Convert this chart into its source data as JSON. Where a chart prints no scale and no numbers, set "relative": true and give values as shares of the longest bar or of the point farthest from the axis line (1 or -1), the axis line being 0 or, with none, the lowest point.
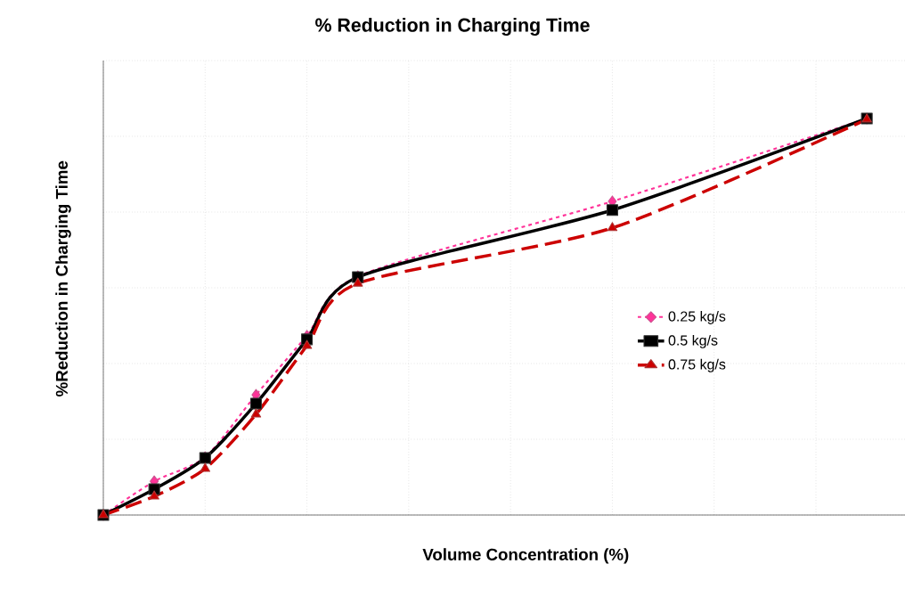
{
  "chart_data": {
    "type": "line",
    "title": "% Reduction in Charging Time",
    "xlabel": "Volume Concentration (%)",
    "ylabel": "%Reduction in Charging Time",
    "relative": true,
    "tick_labels": false,
    "grid": true,
    "legend": "right",
    "categories": [
      null,
      null,
      null,
      null,
      null,
      null,
      null,
      null,
      null,
      null,
      null,
      null,
      null,
      null,
      null,
      null
    ],
    "series": [
      {
        "name": "0.25 kg/s",
        "color": "#ff3399",
        "line_style": "dashed",
        "marker": "diamond",
        "values": [
          0,
          0.085,
          0.146,
          0.303,
          0.452,
          0.602,
          null,
          null,
          null,
          null,
          0.791,
          null,
          null,
          null,
          null,
          1.0
        ]
      },
      {
        "name": "0.5 kg/s",
        "color": "#000000",
        "line_style": "solid",
        "marker": "square",
        "values": [
          0,
          0.065,
          0.144,
          0.281,
          0.443,
          0.6,
          null,
          null,
          null,
          null,
          0.769,
          null,
          null,
          null,
          null,
          1.0
        ]
      },
      {
        "name": "0.75 kg/s",
        "color": "#cc0000",
        "line_style": "dashed",
        "marker": "triangle",
        "values": [
          0,
          0.047,
          0.117,
          0.254,
          0.427,
          0.584,
          null,
          null,
          null,
          null,
          0.724,
          null,
          null,
          null,
          null,
          0.998
        ]
      }
    ]
  }
}
